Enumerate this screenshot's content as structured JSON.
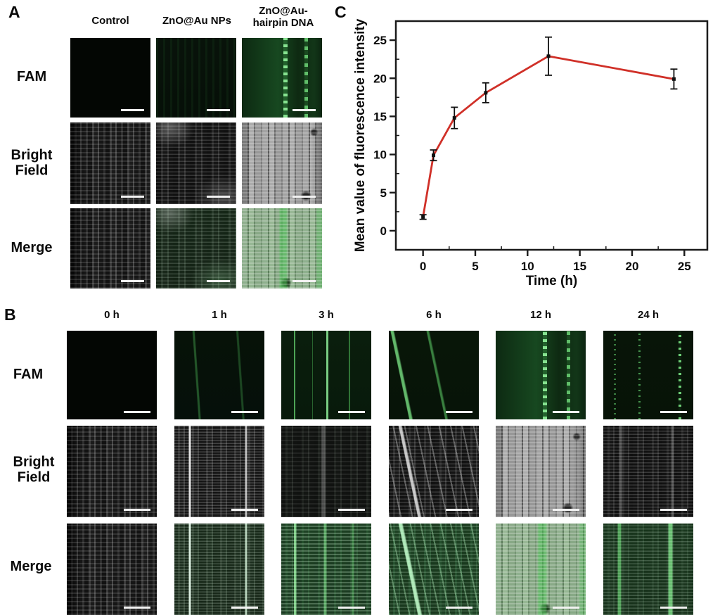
{
  "figure": {
    "panelA": {
      "label": "A",
      "column_headers": [
        "Control",
        "ZnO@Au NPs",
        "ZnO@Au-hairpin DNA"
      ],
      "row_labels": [
        "FAM",
        "Bright Field",
        "Merge"
      ],
      "cells": [
        [
          "fam-black",
          "fam-verydark",
          "fam-streaks-bright"
        ],
        [
          "bf-dark-fibers",
          "bf-dark-speckle",
          "bf-light-fibers"
        ],
        [
          "bf-dark-fibers",
          "merge-dark-speckle",
          "merge-light-green"
        ]
      ],
      "scale_bar_color": "#f2f2f2"
    },
    "panelB": {
      "label": "B",
      "column_headers": [
        "0 h",
        "1 h",
        "3 h",
        "6 h",
        "12 h",
        "24 h"
      ],
      "row_labels": [
        "FAM",
        "Bright Field",
        "Merge"
      ],
      "cells": [
        [
          "fam-black",
          "fam-faint-diag",
          "fam-green-vlines",
          "fam-diag-bright",
          "fam-streaks-bright",
          "fam-dotted"
        ],
        [
          "bf-dark-fibers",
          "bf-speckle-bright",
          "bf-verydark-lines",
          "bf-diag-streaks",
          "bf-light-fibers",
          "bf-dark-speckle2"
        ],
        [
          "bf-dark-fibers",
          "merge-speckle-bright",
          "merge-green-vlines",
          "merge-diag-green",
          "merge-light-green",
          "merge-dark-green-lines"
        ]
      ],
      "scale_bar_color": "#f2f2f2"
    },
    "panelC": {
      "label": "C"
    },
    "fluorescence_green": "#3fae4c"
  },
  "chart_data": {
    "type": "line",
    "title": "",
    "xlabel": "Time (h)",
    "ylabel": "Mean value of fluorescence intensity",
    "x": [
      0,
      1,
      3,
      6,
      12,
      24
    ],
    "y": [
      1.8,
      9.9,
      14.8,
      18.1,
      22.9,
      19.9
    ],
    "yerr": [
      0.3,
      0.7,
      1.4,
      1.3,
      2.5,
      1.3
    ],
    "xlim": [
      -2.6,
      27.2
    ],
    "ylim": [
      -2.5,
      27.5
    ],
    "xticks": [
      0,
      5,
      10,
      15,
      20,
      25
    ],
    "yticks": [
      0,
      5,
      10,
      15,
      20,
      25
    ],
    "minor_tick_step": 2.5,
    "grid": false,
    "legend": null,
    "line_color": "#d03028",
    "marker": "square",
    "marker_color": "#111111",
    "error_bar_color": "#111111",
    "axis_color": "#1a1a1a"
  }
}
